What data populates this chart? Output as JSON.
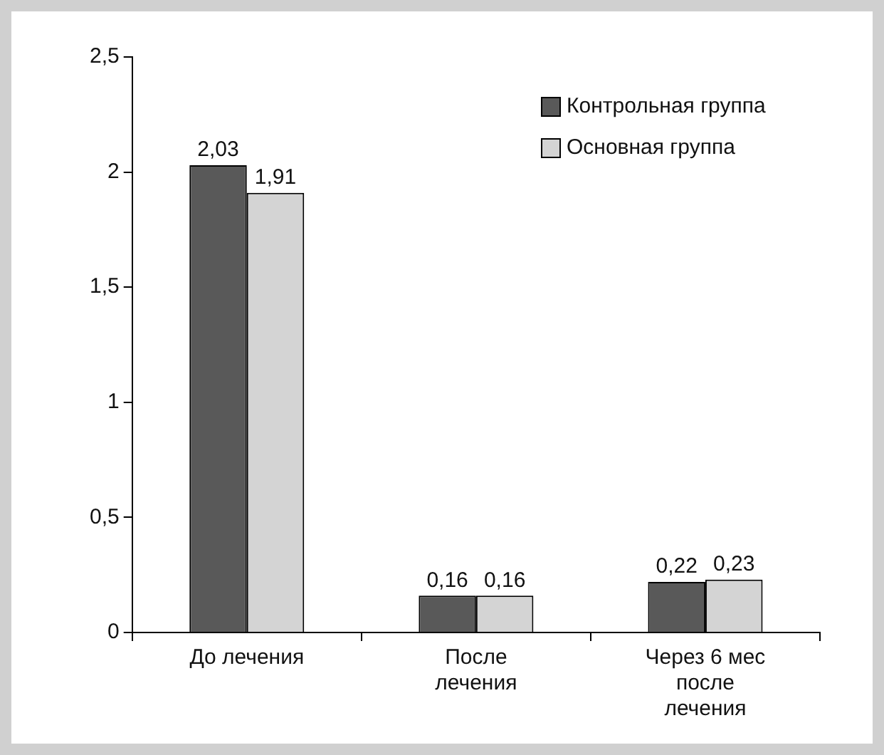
{
  "chart_data": {
    "type": "bar",
    "categories": [
      "До лечения",
      "После\nлечения",
      "Через 6 мес\nпосле\nлечения"
    ],
    "series": [
      {
        "name": "Контрольная группа",
        "color": "#595959",
        "values": [
          2.03,
          0.16,
          0.22
        ],
        "value_labels": [
          "2,03",
          "0,16",
          "0,22"
        ]
      },
      {
        "name": "Основная группа",
        "color": "#d4d4d4",
        "values": [
          1.91,
          0.16,
          0.23
        ],
        "value_labels": [
          "1,91",
          "0,16",
          "0,23"
        ]
      }
    ],
    "ylim": [
      0,
      2.5
    ],
    "yticks": [
      0,
      {
        "value": 0.5,
        "label": "0,5"
      },
      1,
      {
        "value": 1.5,
        "label": "1,5"
      },
      2,
      {
        "value": 2.5,
        "label": "2,5"
      }
    ],
    "grid": false,
    "legend": "top right"
  }
}
